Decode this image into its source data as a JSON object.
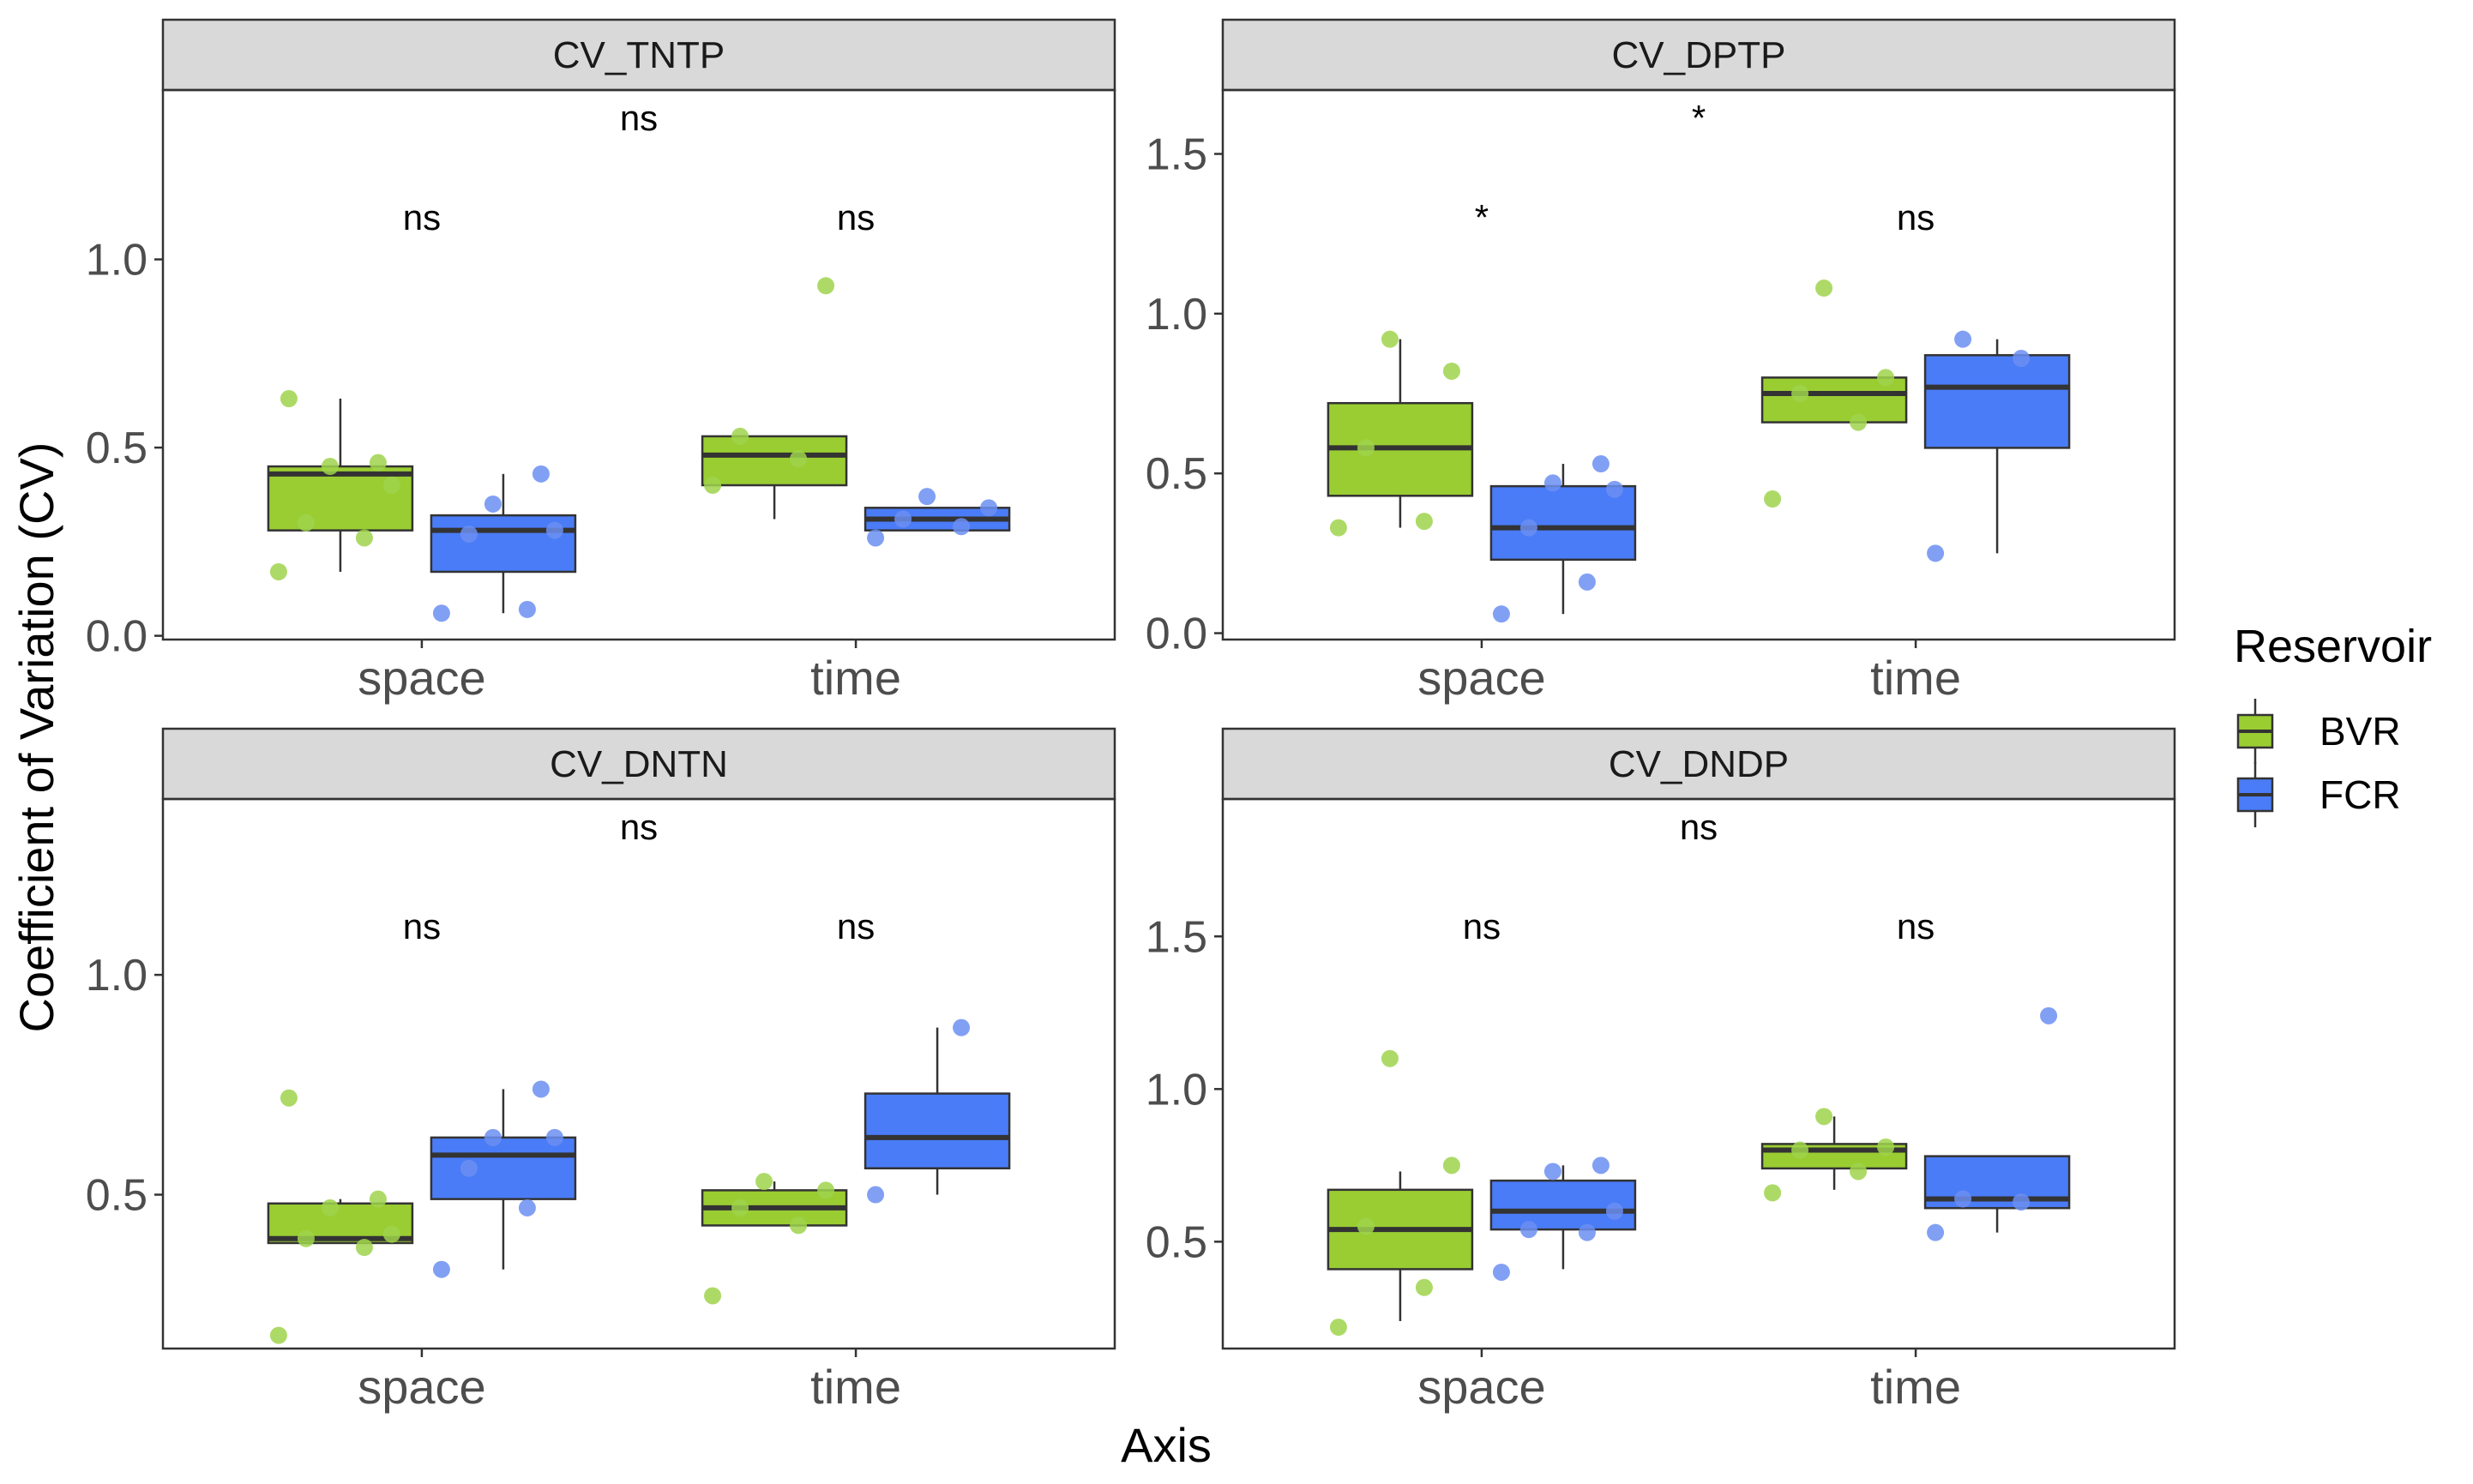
{
  "chart_data": {
    "type": "boxplot",
    "x_axis_title": "Axis",
    "y_axis_title": "Coefficient of Variation (CV)",
    "legend": {
      "title": "Reservoir",
      "placement": "right",
      "entries": [
        {
          "name": "BVR",
          "color": "#9acd32"
        },
        {
          "name": "FCR",
          "color": "#4a7cf7"
        }
      ]
    },
    "colors": {
      "BVR": "#9acd32",
      "FCR": "#4a7cf7",
      "BVR_points": "#9fd44c",
      "FCR_points": "#6b8ff2"
    },
    "categories": [
      "space",
      "time"
    ],
    "panels": [
      {
        "title": "CV_TNTP",
        "ylim": [
          -0.01,
          1.45
        ],
        "yticks": [
          0.0,
          0.5,
          1.0
        ],
        "ytick_labels": [
          "0.0",
          "0.5",
          "1.0"
        ],
        "top_label": "ns",
        "group_labels": [
          "ns",
          "ns"
        ],
        "boxes": [
          {
            "category": "space",
            "series": "BVR",
            "q1": 0.28,
            "median": 0.43,
            "q3": 0.45,
            "whisker_low": 0.17,
            "whisker_high": 0.63
          },
          {
            "category": "space",
            "series": "FCR",
            "q1": 0.17,
            "median": 0.28,
            "q3": 0.32,
            "whisker_low": 0.06,
            "whisker_high": 0.43
          },
          {
            "category": "time",
            "series": "BVR",
            "q1": 0.4,
            "median": 0.48,
            "q3": 0.53,
            "whisker_low": 0.31,
            "whisker_high": 0.53
          },
          {
            "category": "time",
            "series": "FCR",
            "q1": 0.28,
            "median": 0.31,
            "q3": 0.34,
            "whisker_low": 0.28,
            "whisker_high": 0.34
          }
        ],
        "points": [
          {
            "category": "space",
            "series": "BVR",
            "values": [
              0.17,
              0.26,
              0.3,
              0.4,
              0.45,
              0.46,
              0.63
            ]
          },
          {
            "category": "space",
            "series": "FCR",
            "values": [
              0.06,
              0.07,
              0.27,
              0.28,
              0.35,
              0.43
            ]
          },
          {
            "category": "time",
            "series": "BVR",
            "values": [
              0.4,
              0.47,
              0.53,
              0.93
            ]
          },
          {
            "category": "time",
            "series": "FCR",
            "values": [
              0.26,
              0.29,
              0.31,
              0.34,
              0.37
            ]
          }
        ]
      },
      {
        "title": "CV_DPTP",
        "ylim": [
          -0.02,
          1.7
        ],
        "yticks": [
          0.0,
          0.5,
          1.0,
          1.5
        ],
        "ytick_labels": [
          "0.0",
          "0.5",
          "1.0",
          "1.5"
        ],
        "top_label": "*",
        "group_labels": [
          "*",
          "ns"
        ],
        "boxes": [
          {
            "category": "space",
            "series": "BVR",
            "q1": 0.43,
            "median": 0.58,
            "q3": 0.72,
            "whisker_low": 0.33,
            "whisker_high": 0.92
          },
          {
            "category": "space",
            "series": "FCR",
            "q1": 0.23,
            "median": 0.33,
            "q3": 0.46,
            "whisker_low": 0.06,
            "whisker_high": 0.53
          },
          {
            "category": "time",
            "series": "BVR",
            "q1": 0.66,
            "median": 0.75,
            "q3": 0.8,
            "whisker_low": 0.66,
            "whisker_high": 0.8
          },
          {
            "category": "time",
            "series": "FCR",
            "q1": 0.58,
            "median": 0.77,
            "q3": 0.87,
            "whisker_low": 0.25,
            "whisker_high": 0.92
          }
        ],
        "points": [
          {
            "category": "space",
            "series": "BVR",
            "values": [
              0.33,
              0.35,
              0.58,
              0.82,
              0.92
            ]
          },
          {
            "category": "space",
            "series": "FCR",
            "values": [
              0.06,
              0.16,
              0.33,
              0.45,
              0.47,
              0.53
            ]
          },
          {
            "category": "time",
            "series": "BVR",
            "values": [
              0.42,
              0.66,
              0.75,
              0.8,
              1.08
            ]
          },
          {
            "category": "time",
            "series": "FCR",
            "values": [
              0.25,
              0.86,
              0.92
            ]
          }
        ]
      },
      {
        "title": "CV_DNTN",
        "ylim": [
          0.15,
          1.4
        ],
        "yticks": [
          0.5,
          1.0
        ],
        "ytick_labels": [
          "0.5",
          "1.0"
        ],
        "top_label": "ns",
        "group_labels": [
          "ns",
          "ns"
        ],
        "boxes": [
          {
            "category": "space",
            "series": "BVR",
            "q1": 0.39,
            "median": 0.4,
            "q3": 0.48,
            "whisker_low": 0.39,
            "whisker_high": 0.49
          },
          {
            "category": "space",
            "series": "FCR",
            "q1": 0.49,
            "median": 0.59,
            "q3": 0.63,
            "whisker_low": 0.33,
            "whisker_high": 0.74
          },
          {
            "category": "time",
            "series": "BVR",
            "q1": 0.43,
            "median": 0.47,
            "q3": 0.51,
            "whisker_low": 0.43,
            "whisker_high": 0.53
          },
          {
            "category": "time",
            "series": "FCR",
            "q1": 0.56,
            "median": 0.63,
            "q3": 0.73,
            "whisker_low": 0.5,
            "whisker_high": 0.88
          }
        ],
        "points": [
          {
            "category": "space",
            "series": "BVR",
            "values": [
              0.18,
              0.38,
              0.4,
              0.41,
              0.47,
              0.49,
              0.72
            ]
          },
          {
            "category": "space",
            "series": "FCR",
            "values": [
              0.33,
              0.47,
              0.56,
              0.63,
              0.63,
              0.74
            ]
          },
          {
            "category": "time",
            "series": "BVR",
            "values": [
              0.27,
              0.43,
              0.47,
              0.51,
              0.53
            ]
          },
          {
            "category": "time",
            "series": "FCR",
            "values": [
              0.5,
              0.88
            ]
          }
        ]
      },
      {
        "title": "CV_DNDP",
        "ylim": [
          0.15,
          1.95
        ],
        "yticks": [
          0.5,
          1.0,
          1.5
        ],
        "ytick_labels": [
          "0.5",
          "1.0",
          "1.5"
        ],
        "top_label": "ns",
        "group_labels": [
          "ns",
          "ns"
        ],
        "boxes": [
          {
            "category": "space",
            "series": "BVR",
            "q1": 0.41,
            "median": 0.54,
            "q3": 0.67,
            "whisker_low": 0.24,
            "whisker_high": 0.73
          },
          {
            "category": "space",
            "series": "FCR",
            "q1": 0.54,
            "median": 0.6,
            "q3": 0.7,
            "whisker_low": 0.41,
            "whisker_high": 0.75
          },
          {
            "category": "time",
            "series": "BVR",
            "q1": 0.74,
            "median": 0.8,
            "q3": 0.82,
            "whisker_low": 0.67,
            "whisker_high": 0.91
          },
          {
            "category": "time",
            "series": "FCR",
            "q1": 0.61,
            "median": 0.64,
            "q3": 0.78,
            "whisker_low": 0.53,
            "whisker_high": 0.78
          }
        ],
        "points": [
          {
            "category": "space",
            "series": "BVR",
            "values": [
              0.22,
              0.35,
              0.55,
              0.75,
              1.1
            ]
          },
          {
            "category": "space",
            "series": "FCR",
            "values": [
              0.4,
              0.53,
              0.54,
              0.6,
              0.73,
              0.75
            ]
          },
          {
            "category": "time",
            "series": "BVR",
            "values": [
              0.66,
              0.73,
              0.8,
              0.81,
              0.91
            ]
          },
          {
            "category": "time",
            "series": "FCR",
            "values": [
              0.53,
              0.63,
              0.64,
              1.24
            ]
          }
        ]
      }
    ]
  }
}
